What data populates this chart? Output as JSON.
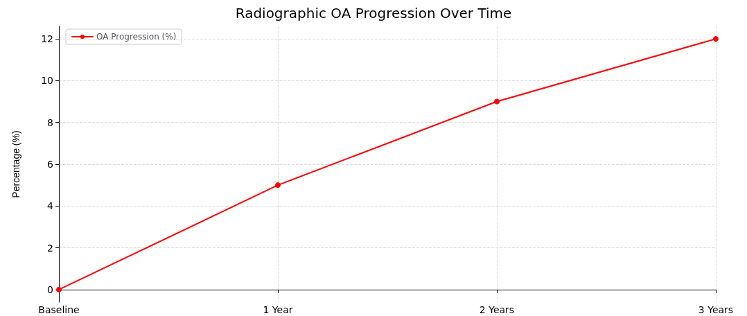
{
  "chart_data": {
    "type": "line",
    "title": "Radiographic OA Progression Over Time",
    "ylabel": "Percentage (%)",
    "categories": [
      "Baseline",
      "1 Year",
      "2 Years",
      "3 Years"
    ],
    "series": [
      {
        "name": "OA Progression (%)",
        "color": "#ff0000",
        "values": [
          0,
          5,
          9,
          12
        ]
      }
    ],
    "ylim": [
      -0.6,
      12.6
    ],
    "yticks": [
      0,
      2,
      4,
      6,
      8,
      10,
      12
    ],
    "grid": true,
    "legend": "top left",
    "marker": "circle",
    "line_style": "solid"
  }
}
